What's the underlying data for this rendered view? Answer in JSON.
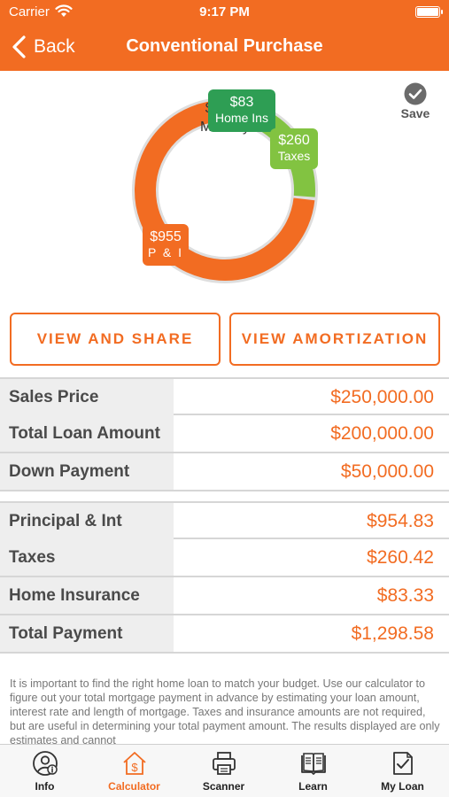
{
  "status": {
    "carrier": "Carrier",
    "time": "9:17 PM"
  },
  "nav": {
    "back_label": "Back",
    "title": "Conventional Purchase"
  },
  "chart_data": {
    "type": "pie",
    "center": {
      "amount": "$1299",
      "label": "Monthly"
    },
    "slices": [
      {
        "label": "P & I",
        "value_label": "$955",
        "value": 954.83,
        "color": "#F26C22"
      },
      {
        "label": "Taxes",
        "value_label": "$260",
        "value": 260.42,
        "color": "#82C341"
      },
      {
        "label": "Home Ins",
        "value_label": "$83",
        "value": 83.33,
        "color": "#2E9E54"
      }
    ]
  },
  "save": {
    "label": "Save"
  },
  "buttons": {
    "share": "VIEW AND SHARE",
    "amortization": "VIEW AMORTIZATION"
  },
  "loan_table": [
    {
      "label": "Sales Price",
      "value": "$250,000.00"
    },
    {
      "label": "Total Loan Amount",
      "value": "$200,000.00"
    },
    {
      "label": "Down Payment",
      "value": "$50,000.00"
    }
  ],
  "payment_table": [
    {
      "label": "Principal & Int",
      "value": "$954.83"
    },
    {
      "label": "Taxes",
      "value": "$260.42"
    },
    {
      "label": "Home Insurance",
      "value": "$83.33"
    },
    {
      "label": "Total Payment",
      "value": "$1,298.58"
    }
  ],
  "disclaimer": "It is important to find the right home loan to match your budget. Use our calculator to figure out your total mortgage payment in advance by estimating your loan amount, interest rate and length of mortgage. Taxes and insurance amounts are not required, but are useful in determining your total payment amount.  The results displayed are only estimates and cannot",
  "tabs": [
    {
      "label": "Info",
      "icon": "info-user-icon"
    },
    {
      "label": "Calculator",
      "icon": "calculator-house-icon",
      "active": true
    },
    {
      "label": "Scanner",
      "icon": "printer-icon"
    },
    {
      "label": "Learn",
      "icon": "book-icon"
    },
    {
      "label": "My Loan",
      "icon": "document-check-icon"
    }
  ],
  "colors": {
    "brand": "#F26C22",
    "home_ins": "#2E9E54",
    "taxes": "#82C341",
    "label_bg": "#EEEEEE"
  }
}
